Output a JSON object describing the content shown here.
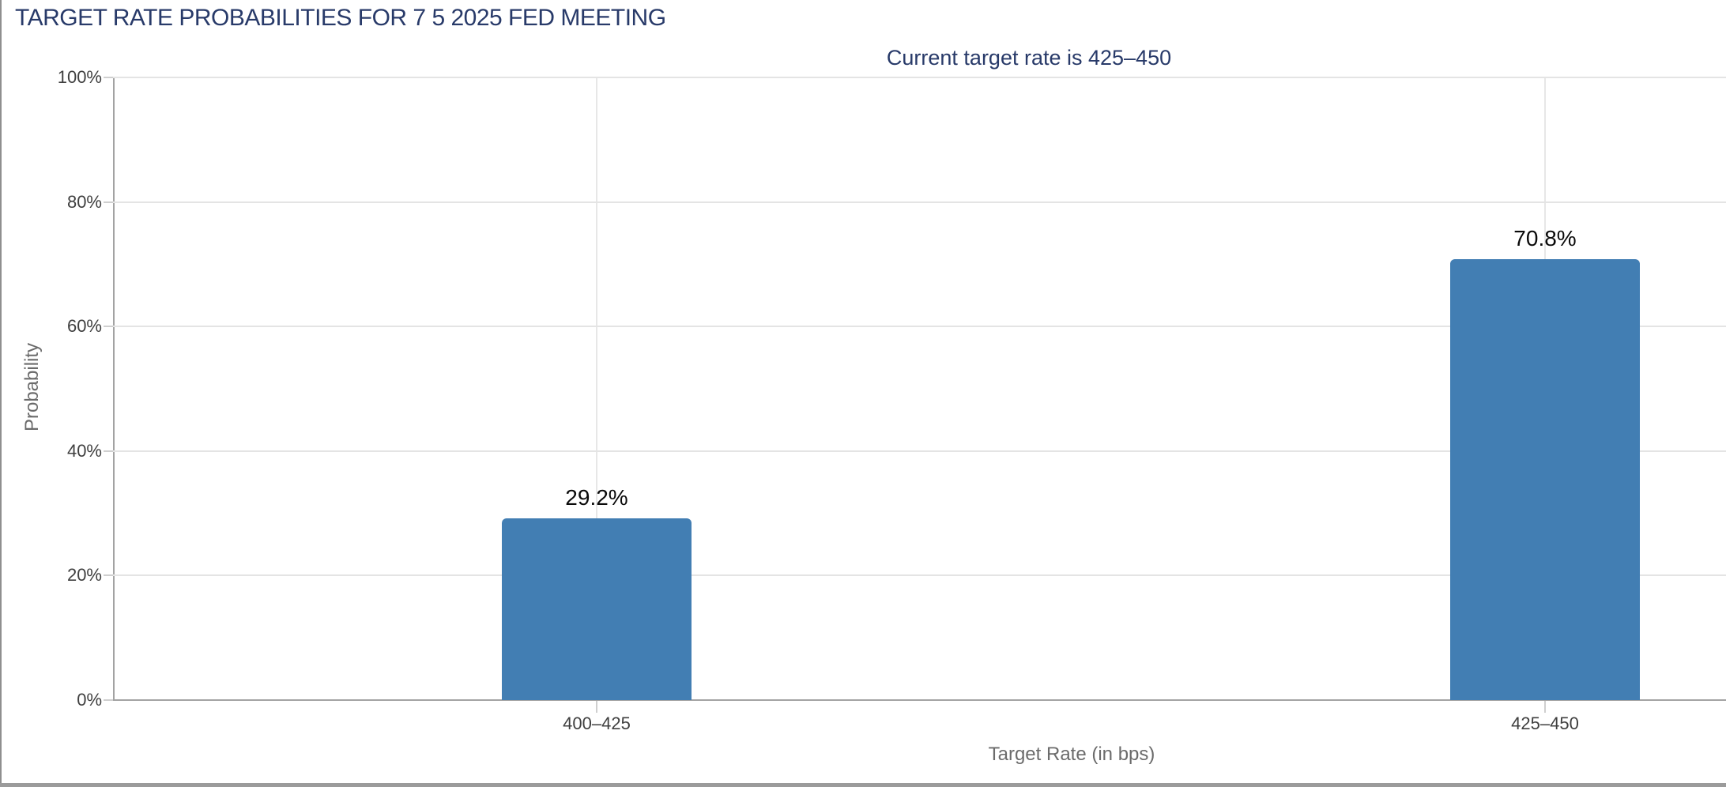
{
  "chart_data": {
    "type": "bar",
    "title": "TARGET RATE PROBABILITIES FOR 7 5 2025 FED MEETING",
    "subtitle": "Current target rate is 425–450",
    "categories": [
      "400–425",
      "425–450"
    ],
    "values": [
      29.2,
      70.8
    ],
    "value_labels": [
      "29.2%",
      "70.8%"
    ],
    "xlabel": "Target Rate (in bps)",
    "ylabel": "Probability",
    "ylim": [
      0,
      100
    ],
    "yticks": [
      0,
      20,
      40,
      60,
      80,
      100
    ],
    "ytick_labels": [
      "0%",
      "20%",
      "40%",
      "60%",
      "80%",
      "100%"
    ],
    "grid": true,
    "legend_position": "none",
    "bar_color": "#427EB3"
  },
  "colors": {
    "title_navy": "#283a69",
    "bar_blue": "#427EB3",
    "gridline": "#e4e4e4",
    "axis_line": "#a3a3a3",
    "tick_label": "#3f3f3f",
    "axis_title": "#6b6b6b",
    "data_label": "#0a0a0a",
    "frame_border": "#9b9b9b"
  }
}
